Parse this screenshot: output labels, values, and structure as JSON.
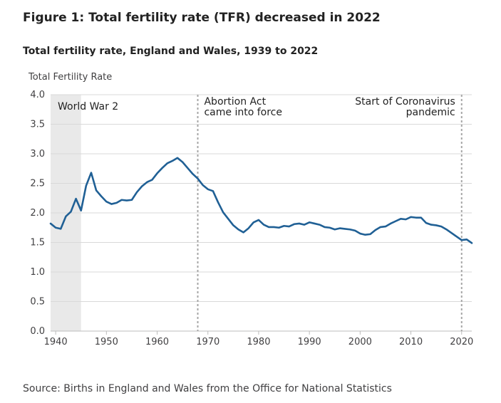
{
  "figure": {
    "title": "Figure 1: Total fertility rate (TFR) decreased in 2022",
    "subtitle": "Total fertility rate, England and Wales, 1939 to 2022",
    "source": "Source: Births in England and Wales from the Office for National Statistics"
  },
  "chart_data": {
    "type": "line",
    "ylabel": "Total Fertility Rate",
    "xlabel": "",
    "xlim": [
      1939,
      2022
    ],
    "ylim": [
      0,
      4
    ],
    "x_ticks": [
      1940,
      1950,
      1960,
      1970,
      1980,
      1990,
      2000,
      2010,
      2020
    ],
    "y_ticks": [
      "0.0",
      "0.5",
      "1.0",
      "1.5",
      "2.0",
      "2.5",
      "3.0",
      "3.5",
      "4.0"
    ],
    "grid": true,
    "line_color": "#206095",
    "shaded_region": {
      "x": [
        1939,
        1945
      ],
      "label": "World War 2",
      "color": "#e9e9e9"
    },
    "annotations": [
      {
        "x": 1968,
        "lines": [
          "Abortion Act",
          "came into force"
        ],
        "align": "left"
      },
      {
        "x": 2020,
        "lines": [
          "Start of Coronavirus",
          "pandemic"
        ],
        "align": "right"
      }
    ],
    "series": [
      {
        "x": [
          1939,
          1940,
          1941,
          1942,
          1943,
          1944,
          1945,
          1946,
          1947,
          1948,
          1949,
          1950,
          1951,
          1952,
          1953,
          1954,
          1955,
          1956,
          1957,
          1958,
          1959,
          1960,
          1961,
          1962,
          1963,
          1964,
          1965,
          1966,
          1967,
          1968,
          1969,
          1970,
          1971,
          1972,
          1973,
          1974,
          1975,
          1976,
          1977,
          1978,
          1979,
          1980,
          1981,
          1982,
          1983,
          1984,
          1985,
          1986,
          1987,
          1988,
          1989,
          1990,
          1991,
          1992,
          1993,
          1994,
          1995,
          1996,
          1997,
          1998,
          1999,
          2000,
          2001,
          2002,
          2003,
          2004,
          2005,
          2006,
          2007,
          2008,
          2009,
          2010,
          2011,
          2012,
          2013,
          2014,
          2015,
          2016,
          2017,
          2018,
          2019,
          2020,
          2021,
          2022
        ],
        "values": [
          1.82,
          1.75,
          1.73,
          1.94,
          2.02,
          2.24,
          2.04,
          2.46,
          2.68,
          2.38,
          2.28,
          2.19,
          2.15,
          2.17,
          2.22,
          2.21,
          2.22,
          2.35,
          2.45,
          2.52,
          2.56,
          2.67,
          2.76,
          2.84,
          2.88,
          2.93,
          2.86,
          2.76,
          2.66,
          2.58,
          2.47,
          2.4,
          2.37,
          2.18,
          2.01,
          1.9,
          1.79,
          1.72,
          1.67,
          1.74,
          1.84,
          1.88,
          1.8,
          1.76,
          1.76,
          1.75,
          1.78,
          1.77,
          1.81,
          1.82,
          1.8,
          1.84,
          1.82,
          1.8,
          1.76,
          1.75,
          1.72,
          1.74,
          1.73,
          1.72,
          1.7,
          1.65,
          1.63,
          1.64,
          1.71,
          1.76,
          1.77,
          1.82,
          1.86,
          1.9,
          1.89,
          1.93,
          1.92,
          1.92,
          1.83,
          1.8,
          1.79,
          1.77,
          1.72,
          1.66,
          1.6,
          1.54,
          1.55,
          1.49
        ]
      }
    ]
  }
}
